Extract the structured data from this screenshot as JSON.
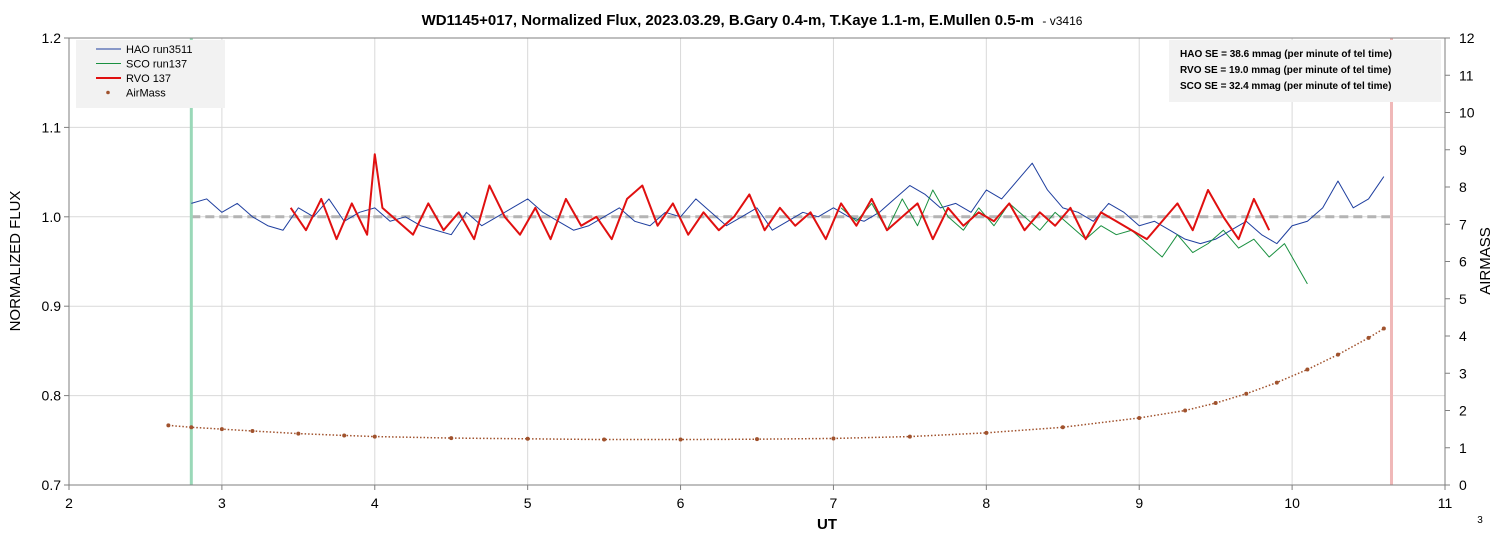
{
  "chart_data": {
    "type": "line",
    "title": "WD1145+017, Normalized Flux, 2023.03.29, B.Gary 0.4-m, T.Kaye 1.1-m, E.Mullen 0.5-m",
    "title_suffix": "- ",
    "version": "v3416",
    "xlabel": "UT",
    "ylabel": "NORMALIZED FLUX",
    "y2label": "AIRMASS",
    "xlim": [
      2,
      11
    ],
    "ylim": [
      0.7,
      1.2
    ],
    "y2lim": [
      0,
      12
    ],
    "xticks": [
      "2",
      "3",
      "4",
      "5",
      "6",
      "7",
      "8",
      "9",
      "10",
      "11"
    ],
    "yticks": [
      "0.7",
      "0.8",
      "0.9",
      "1.0",
      "1.1",
      "1.2"
    ],
    "y2ticks": [
      "0",
      "1",
      "2",
      "3",
      "4",
      "5",
      "6",
      "7",
      "8",
      "9",
      "10",
      "11",
      "12"
    ],
    "grid": true,
    "legend_position": "top-left",
    "reference_line": {
      "y": 1.0,
      "color": "#b4b4b4",
      "style": "dashed"
    },
    "vertical_markers": [
      {
        "x": 2.8,
        "color": "#9ad8b8"
      },
      {
        "x": 10.65,
        "color": "#f0b8b8"
      }
    ],
    "series": [
      {
        "name": "HAO run3511",
        "color": "#1f3f9f",
        "width": 1,
        "axis": "left",
        "x": [
          2.8,
          2.9,
          3.0,
          3.1,
          3.2,
          3.3,
          3.4,
          3.5,
          3.6,
          3.7,
          3.8,
          3.9,
          4.0,
          4.1,
          4.2,
          4.3,
          4.4,
          4.5,
          4.6,
          4.7,
          4.8,
          4.9,
          5.0,
          5.1,
          5.2,
          5.3,
          5.4,
          5.5,
          5.6,
          5.7,
          5.8,
          5.9,
          6.0,
          6.1,
          6.2,
          6.3,
          6.4,
          6.5,
          6.6,
          6.7,
          6.8,
          6.9,
          7.0,
          7.1,
          7.2,
          7.3,
          7.4,
          7.5,
          7.6,
          7.7,
          7.8,
          7.9,
          8.0,
          8.1,
          8.2,
          8.3,
          8.4,
          8.5,
          8.6,
          8.7,
          8.8,
          8.9,
          9.0,
          9.1,
          9.2,
          9.3,
          9.4,
          9.5,
          9.6,
          9.7,
          9.8,
          9.9,
          10.0,
          10.1,
          10.2,
          10.3,
          10.4,
          10.5,
          10.6
        ],
        "y": [
          1.015,
          1.02,
          1.005,
          1.015,
          1.0,
          0.99,
          0.985,
          1.01,
          1.0,
          1.02,
          0.995,
          1.005,
          1.01,
          0.995,
          1.0,
          0.99,
          0.985,
          0.98,
          1.005,
          0.99,
          1.0,
          1.01,
          1.02,
          1.005,
          0.995,
          0.985,
          0.99,
          1.0,
          1.01,
          0.995,
          0.99,
          1.005,
          1.0,
          1.02,
          1.005,
          0.99,
          1.0,
          1.01,
          0.985,
          0.995,
          1.005,
          1.0,
          1.01,
          1.0,
          0.995,
          1.005,
          1.02,
          1.035,
          1.025,
          1.01,
          1.015,
          1.005,
          1.03,
          1.02,
          1.04,
          1.06,
          1.03,
          1.01,
          1.005,
          0.995,
          1.015,
          1.005,
          0.99,
          0.995,
          0.985,
          0.975,
          0.97,
          0.975,
          0.985,
          0.995,
          0.98,
          0.97,
          0.99,
          0.995,
          1.01,
          1.04,
          1.01,
          1.02,
          1.045
        ]
      },
      {
        "name": "SCO run137",
        "color": "#1a9040",
        "width": 1,
        "axis": "left",
        "x": [
          7.05,
          7.15,
          7.25,
          7.35,
          7.45,
          7.55,
          7.65,
          7.75,
          7.85,
          7.95,
          8.05,
          8.15,
          8.25,
          8.35,
          8.45,
          8.55,
          8.65,
          8.75,
          8.85,
          8.95,
          9.05,
          9.15,
          9.25,
          9.35,
          9.45,
          9.55,
          9.65,
          9.75,
          9.85,
          9.95,
          10.05,
          10.1
        ],
        "y": [
          1.01,
          0.995,
          1.015,
          0.985,
          1.02,
          0.99,
          1.03,
          1.0,
          0.985,
          1.01,
          0.99,
          1.015,
          1.0,
          0.985,
          1.005,
          0.99,
          0.975,
          0.99,
          0.98,
          0.985,
          0.97,
          0.955,
          0.98,
          0.96,
          0.97,
          0.985,
          0.965,
          0.975,
          0.955,
          0.97,
          0.94,
          0.925
        ]
      },
      {
        "name": "RVO 137",
        "color": "#e01010",
        "width": 2,
        "axis": "left",
        "x": [
          3.45,
          3.55,
          3.65,
          3.75,
          3.85,
          3.95,
          4.0,
          4.05,
          4.15,
          4.25,
          4.35,
          4.45,
          4.55,
          4.65,
          4.75,
          4.85,
          4.95,
          5.05,
          5.15,
          5.25,
          5.35,
          5.45,
          5.55,
          5.65,
          5.75,
          5.85,
          5.95,
          6.05,
          6.15,
          6.25,
          6.35,
          6.45,
          6.55,
          6.65,
          6.75,
          6.85,
          6.95,
          7.05,
          7.15,
          7.25,
          7.35,
          7.45,
          7.55,
          7.65,
          7.75,
          7.85,
          7.95,
          8.05,
          8.15,
          8.25,
          8.35,
          8.45,
          8.55,
          8.65,
          8.75,
          8.85,
          8.95,
          9.05,
          9.15,
          9.25,
          9.35,
          9.45,
          9.55,
          9.65,
          9.75,
          9.85
        ],
        "y": [
          1.01,
          0.985,
          1.02,
          0.975,
          1.015,
          0.98,
          1.07,
          1.01,
          0.995,
          0.98,
          1.015,
          0.985,
          1.005,
          0.975,
          1.035,
          1.0,
          0.98,
          1.01,
          0.975,
          1.02,
          0.99,
          1.0,
          0.975,
          1.02,
          1.035,
          0.99,
          1.015,
          0.98,
          1.005,
          0.985,
          1.0,
          1.025,
          0.985,
          1.01,
          0.99,
          1.005,
          0.975,
          1.015,
          0.99,
          1.02,
          0.985,
          1.0,
          1.015,
          0.975,
          1.01,
          0.99,
          1.005,
          0.995,
          1.015,
          0.985,
          1.005,
          0.99,
          1.01,
          0.975,
          1.005,
          0.995,
          0.985,
          0.975,
          0.995,
          1.015,
          0.985,
          1.03,
          1.0,
          0.975,
          1.02,
          0.985
        ]
      },
      {
        "name": "AirMass",
        "color": "#a0522d",
        "marker": "dot",
        "axis": "right",
        "x": [
          2.65,
          2.8,
          3.0,
          3.2,
          3.5,
          3.8,
          4.0,
          4.5,
          5.0,
          5.5,
          6.0,
          6.5,
          7.0,
          7.5,
          8.0,
          8.5,
          9.0,
          9.3,
          9.5,
          9.7,
          9.9,
          10.1,
          10.3,
          10.5,
          10.6
        ],
        "y": [
          1.6,
          1.55,
          1.5,
          1.45,
          1.38,
          1.33,
          1.3,
          1.26,
          1.24,
          1.22,
          1.22,
          1.23,
          1.25,
          1.3,
          1.4,
          1.55,
          1.8,
          2.0,
          2.2,
          2.45,
          2.75,
          3.1,
          3.5,
          3.95,
          4.2
        ]
      }
    ],
    "stats_box": [
      "HAO SE = 38.6 mmag (per minute of tel time)",
      "RVO SE = 19.0 mmag (per minute of tel time)",
      "SCO SE  = 32.4 mmag (per minute of tel time)"
    ],
    "page_number": "3"
  }
}
